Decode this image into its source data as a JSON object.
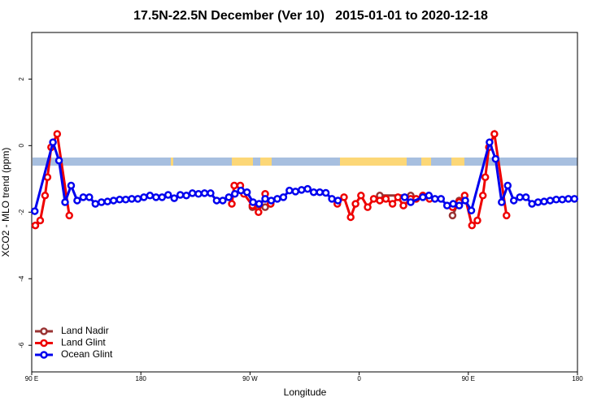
{
  "chart_data": {
    "type": "line",
    "title": "17.5N-22.5N December (Ver 10)   2015-01-01 to 2020-12-18",
    "x_label": "Longitude",
    "y_label": "XCO2 - MLO trend (ppm)",
    "xlim": [
      90,
      540
    ],
    "xticks": [
      {
        "value": 90,
        "label": "90 E"
      },
      {
        "value": 180,
        "label": "180"
      },
      {
        "value": 270,
        "label": "90 W"
      },
      {
        "value": 360,
        "label": "0"
      },
      {
        "value": 450,
        "label": "90 E"
      },
      {
        "value": 540,
        "label": "180"
      }
    ],
    "ylim": [
      -6.8,
      3.4
    ],
    "yticks": [
      -6,
      -4,
      -2,
      0,
      2
    ],
    "legend": "bottom-left",
    "series": [
      {
        "name": "Land Nadir",
        "color": "#993333",
        "x": [
          272,
          282.5,
          287,
          330,
          377,
          402.5,
          420,
          437,
          442.5
        ],
        "values": [
          -1.85,
          -1.85,
          -1.75,
          null,
          -1.5,
          -1.5,
          null,
          -2.1,
          -1.65
        ]
      },
      {
        "name": "Land Glint",
        "color": "#ee0000",
        "x": [
          93,
          97,
          101,
          103,
          106,
          111,
          121,
          190,
          255,
          257,
          262,
          265,
          272,
          277,
          282.5,
          287,
          315,
          342,
          347.5,
          353,
          357,
          361.5,
          367,
          372,
          377,
          382,
          387.5,
          392,
          396.5,
          402.5,
          407,
          412.5,
          418,
          430,
          437,
          442.5,
          447,
          453,
          457.5,
          462,
          464,
          467,
          471.5,
          481.5
        ],
        "values": [
          -2.4,
          -2.25,
          -1.5,
          -0.95,
          -0.05,
          0.35,
          -2.1,
          null,
          -1.75,
          -1.2,
          -1.2,
          -1.45,
          -1.8,
          -2.0,
          -1.45,
          -1.75,
          null,
          -1.75,
          -1.55,
          -2.15,
          -1.75,
          -1.5,
          -1.85,
          -1.6,
          -1.65,
          -1.6,
          -1.75,
          -1.55,
          -1.8,
          -1.6,
          -1.6,
          -1.5,
          -1.6,
          null,
          -1.85,
          -1.7,
          -1.5,
          -2.4,
          -2.25,
          -1.5,
          -0.95,
          -0.05,
          0.35,
          -2.1
        ]
      },
      {
        "name": "Ocean Glint",
        "color": "#0000ee",
        "x": [
          92.5,
          107.5,
          112.5,
          117.5,
          122.5,
          127.5,
          132.5,
          137.5,
          142.5,
          147.5,
          152.5,
          157.5,
          162.5,
          167.5,
          172.5,
          177.5,
          182.5,
          187.5,
          192.5,
          197.5,
          202.5,
          207.5,
          212.5,
          217.5,
          222.5,
          227.5,
          232.5,
          237.5,
          242.5,
          247.5,
          252.5,
          257.5,
          262.5,
          267.5,
          272.5,
          277.5,
          282.5,
          287.5,
          292.5,
          297.5,
          302.5,
          307.5,
          312.5,
          317.5,
          322.5,
          327.5,
          332.5,
          337.5,
          342.5,
          370,
          397.5,
          402.5,
          412.5,
          417.5,
          422.5,
          427.5,
          432.5,
          437.5,
          442.5,
          447.5,
          452.5,
          467.5,
          472.5,
          477.5,
          482.5,
          487.5,
          492.5,
          497.5,
          502.5,
          507.5,
          512.5,
          517.5,
          522.5,
          527.5,
          532.5,
          537.5
        ],
        "values": [
          -1.97,
          0.1,
          -0.45,
          -1.7,
          -1.2,
          -1.65,
          -1.55,
          -1.55,
          -1.75,
          -1.7,
          -1.68,
          -1.65,
          -1.62,
          -1.62,
          -1.6,
          -1.6,
          -1.55,
          -1.5,
          -1.55,
          -1.55,
          -1.48,
          -1.58,
          -1.48,
          -1.5,
          -1.43,
          -1.45,
          -1.43,
          -1.43,
          -1.65,
          -1.65,
          -1.55,
          -1.45,
          -1.35,
          -1.4,
          -1.7,
          -1.75,
          -1.6,
          -1.65,
          -1.6,
          -1.55,
          -1.35,
          -1.38,
          -1.33,
          -1.3,
          -1.4,
          -1.4,
          -1.42,
          -1.6,
          -1.65,
          null,
          -1.55,
          -1.7,
          -1.55,
          -1.5,
          -1.6,
          -1.6,
          -1.8,
          -1.75,
          -1.8,
          -1.65,
          -1.95,
          0.1,
          -0.4,
          -1.7,
          -1.2,
          -1.65,
          -1.55,
          -1.55,
          -1.75,
          -1.7,
          -1.68,
          -1.65,
          -1.62,
          -1.62,
          -1.6,
          -1.6
        ]
      }
    ]
  }
}
